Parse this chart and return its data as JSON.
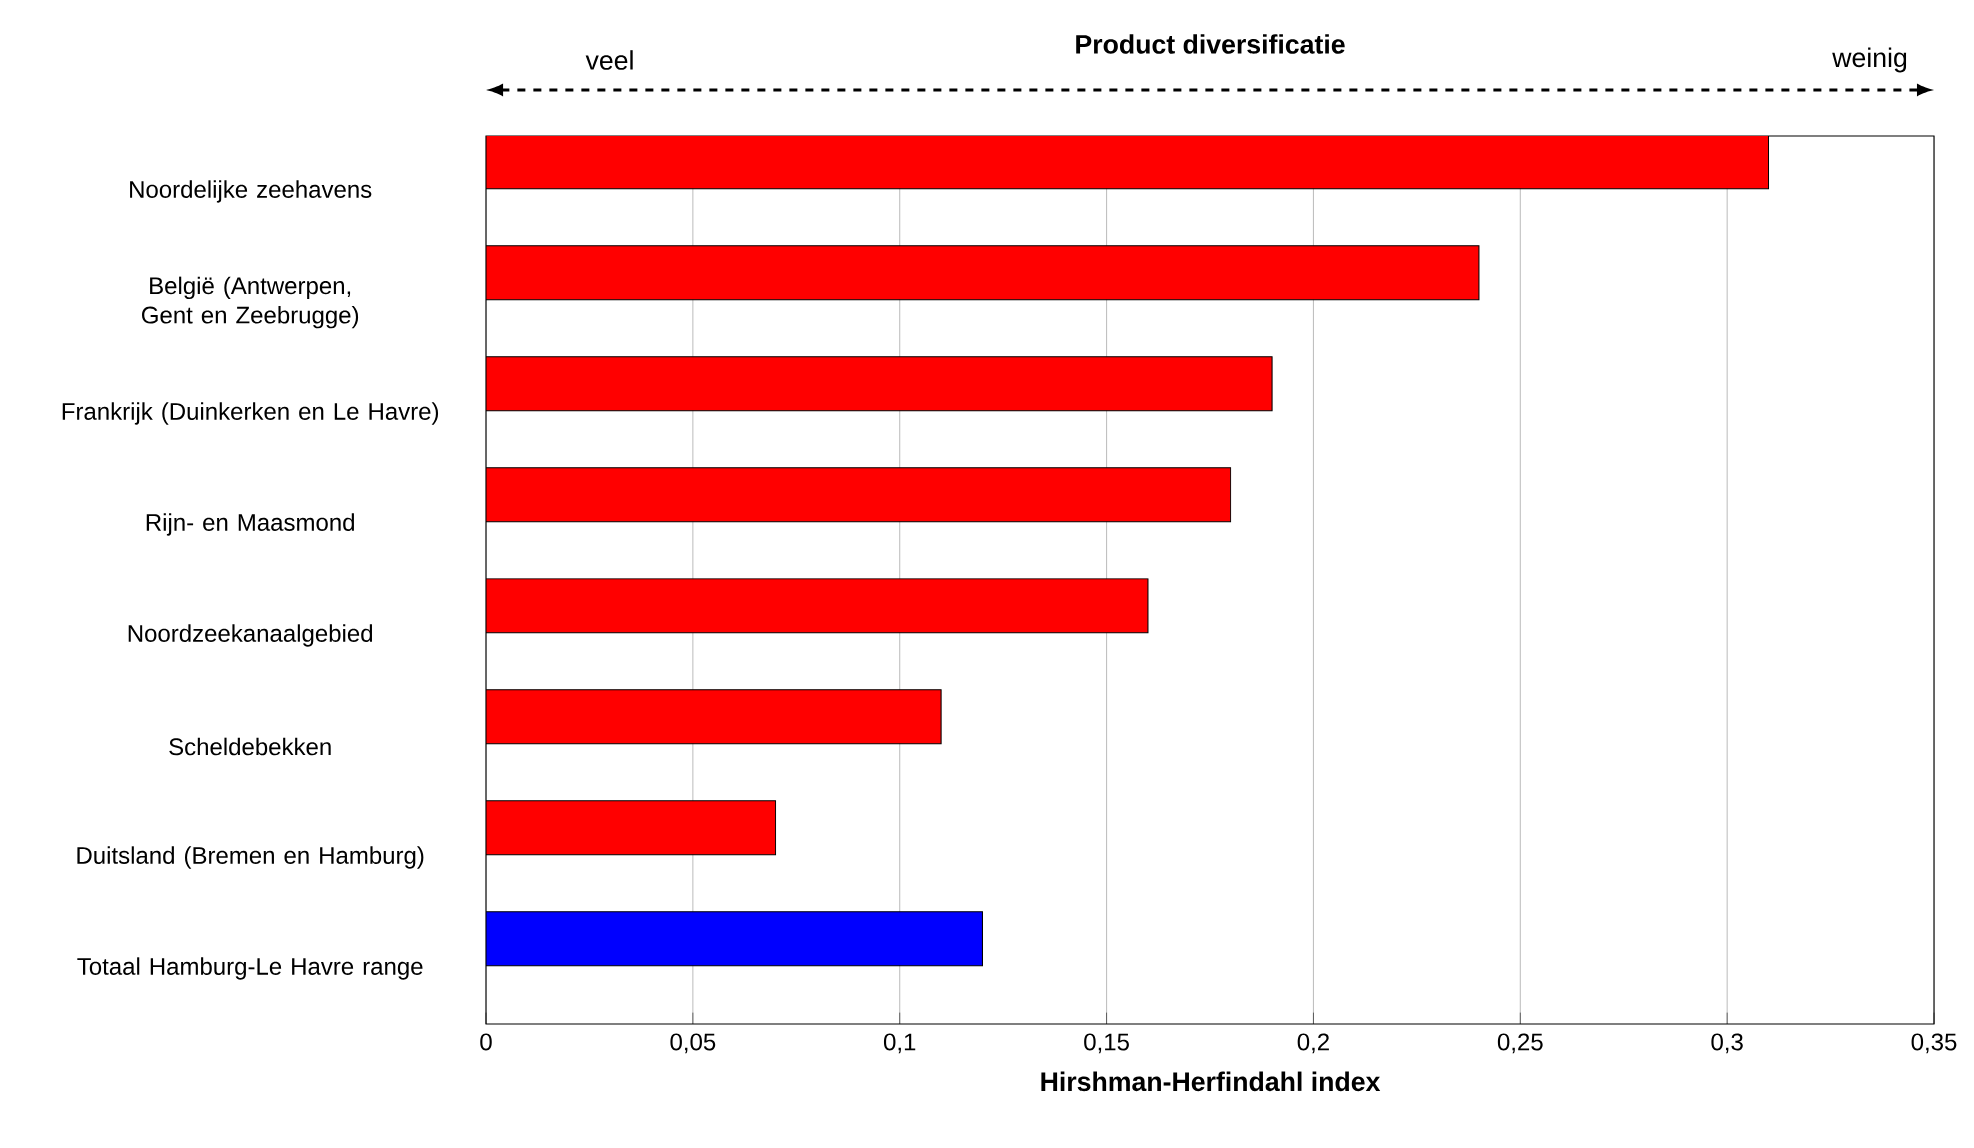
{
  "chart_data": {
    "type": "bar",
    "orientation": "horizontal",
    "title": "Product diversificatie",
    "xlabel": "Hirshman-Herfindahl index",
    "annotations": [
      "veel",
      "weinig"
    ],
    "categories": [
      "Noordelijke zeehavens",
      "België (Antwerpen, Gent en Zeebrugge)",
      "Frankrijk (Duinkerken en Le Havre)",
      "Rijn- en Maasmond",
      "Noordzeekanaalgebied",
      "Scheldebekken",
      "Duitsland (Bremen en Hamburg)",
      "Totaal Hamburg-Le Havre range"
    ],
    "values": [
      0.31,
      0.24,
      0.19,
      0.18,
      0.16,
      0.11,
      0.07,
      0.12
    ],
    "colors": [
      "#ff0000",
      "#ff0000",
      "#ff0000",
      "#ff0000",
      "#ff0000",
      "#ff0000",
      "#ff0000",
      "#0000ff"
    ],
    "xlim": [
      0,
      0.35
    ],
    "xticks": [
      0,
      {
        "value": 0.05,
        "label": "0,05"
      },
      {
        "value": 0.1,
        "label": "0,1"
      },
      {
        "value": 0.15,
        "label": "0,15"
      },
      {
        "value": 0.2,
        "label": "0,2"
      },
      {
        "value": 0.25,
        "label": "0,25"
      },
      {
        "value": 0.3,
        "label": "0,3"
      },
      {
        "value": 0.35,
        "label": "0,35"
      }
    ],
    "grid": "x"
  }
}
